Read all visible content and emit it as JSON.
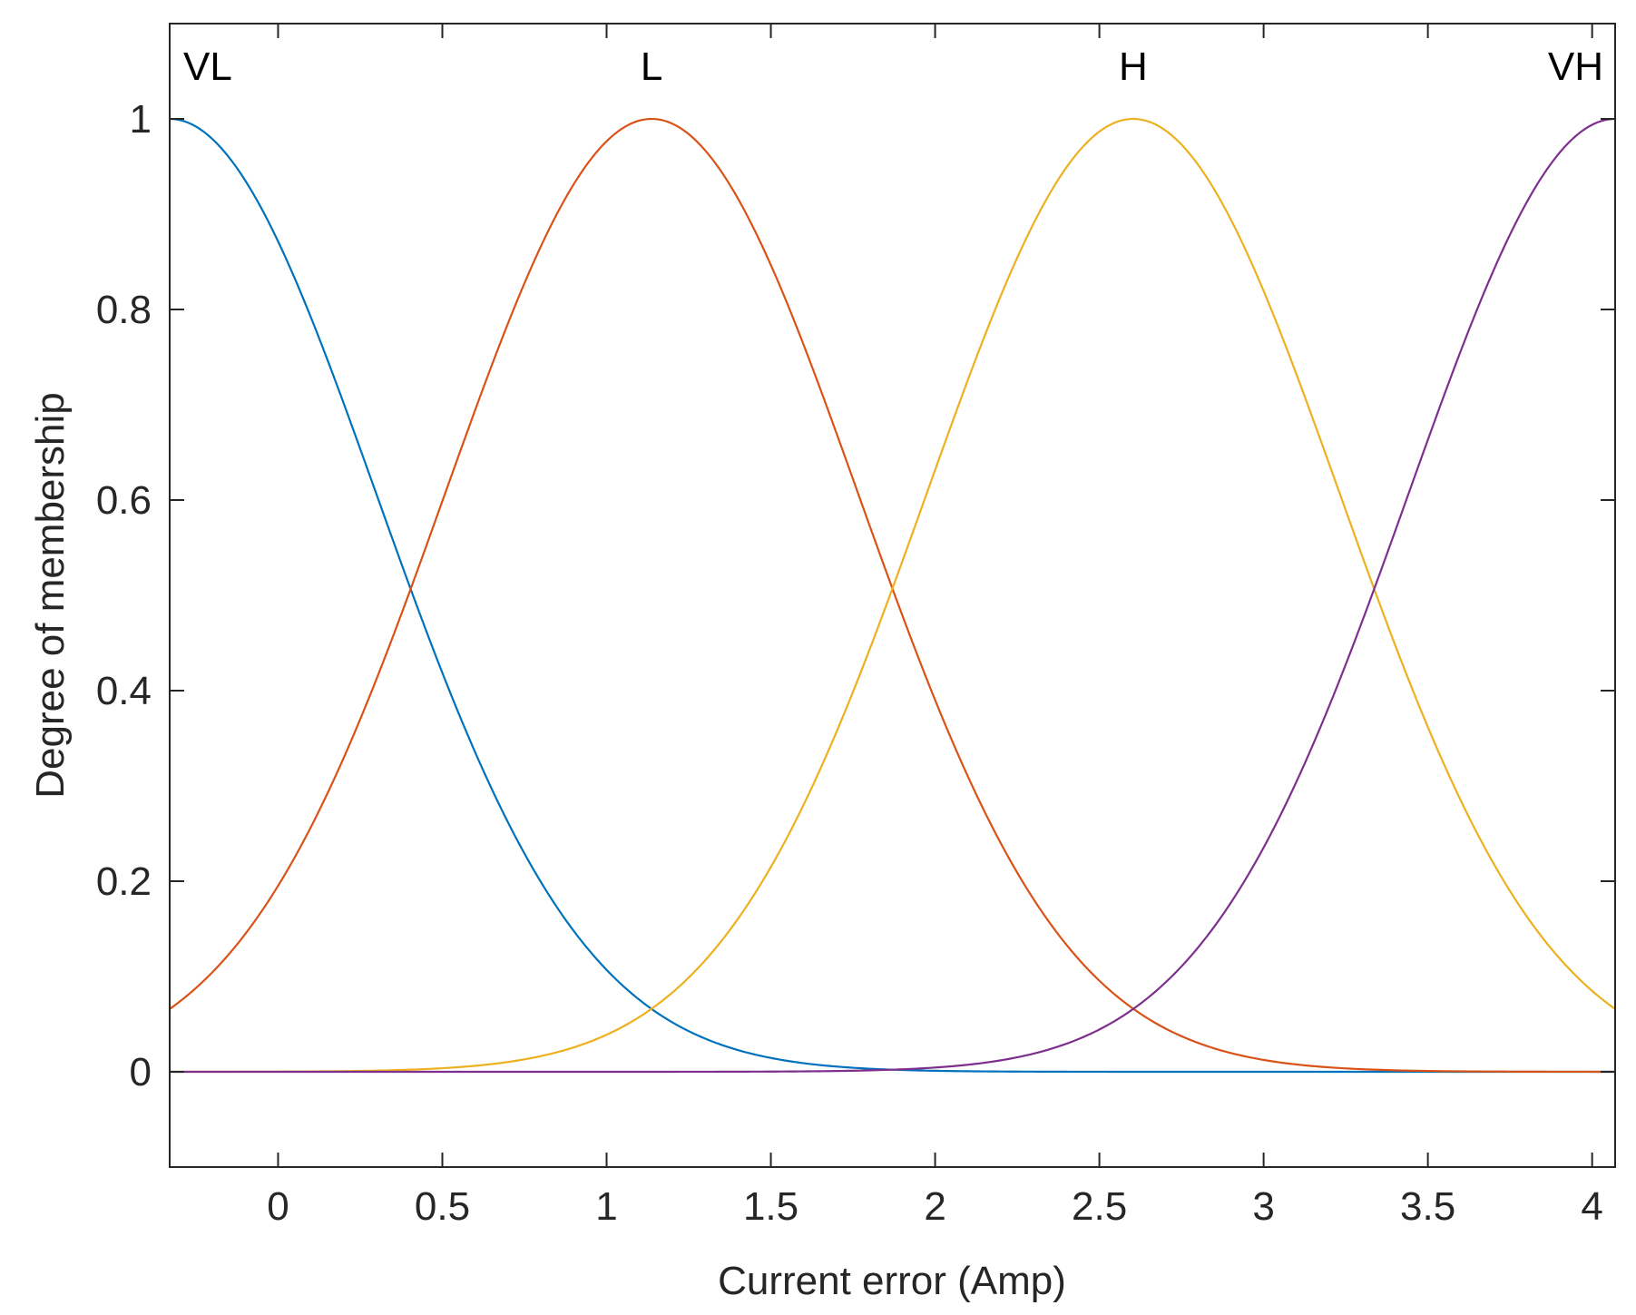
{
  "chart_data": {
    "type": "line",
    "title": "",
    "xlabel": "Current error (Amp)",
    "ylabel": "Degree of membership",
    "xlim": [
      -0.33,
      4.07
    ],
    "ylim": [
      -0.1,
      1.1
    ],
    "xticks": [
      0,
      0.5,
      1,
      1.5,
      2,
      2.5,
      3,
      3.5,
      4
    ],
    "xtick_labels": [
      "0",
      "0.5",
      "1",
      "1.5",
      "2",
      "2.5",
      "3",
      "3.5",
      "4"
    ],
    "yticks": [
      0,
      0.2,
      0.4,
      0.6,
      0.8,
      1
    ],
    "ytick_labels": [
      "0",
      "0.2",
      "0.4",
      "0.6",
      "0.8",
      "1"
    ],
    "grid": false,
    "legend": "none",
    "membership_function_type": "gaussian",
    "series": [
      {
        "name": "VL",
        "center": -0.33,
        "sigma": 0.629,
        "color": "#0072BD"
      },
      {
        "name": "L",
        "center": 1.137,
        "sigma": 0.629,
        "color": "#D95319"
      },
      {
        "name": "H",
        "center": 2.603,
        "sigma": 0.629,
        "color": "#EDB120"
      },
      {
        "name": "VH",
        "center": 4.07,
        "sigma": 0.629,
        "color": "#7E2F8E"
      }
    ]
  }
}
